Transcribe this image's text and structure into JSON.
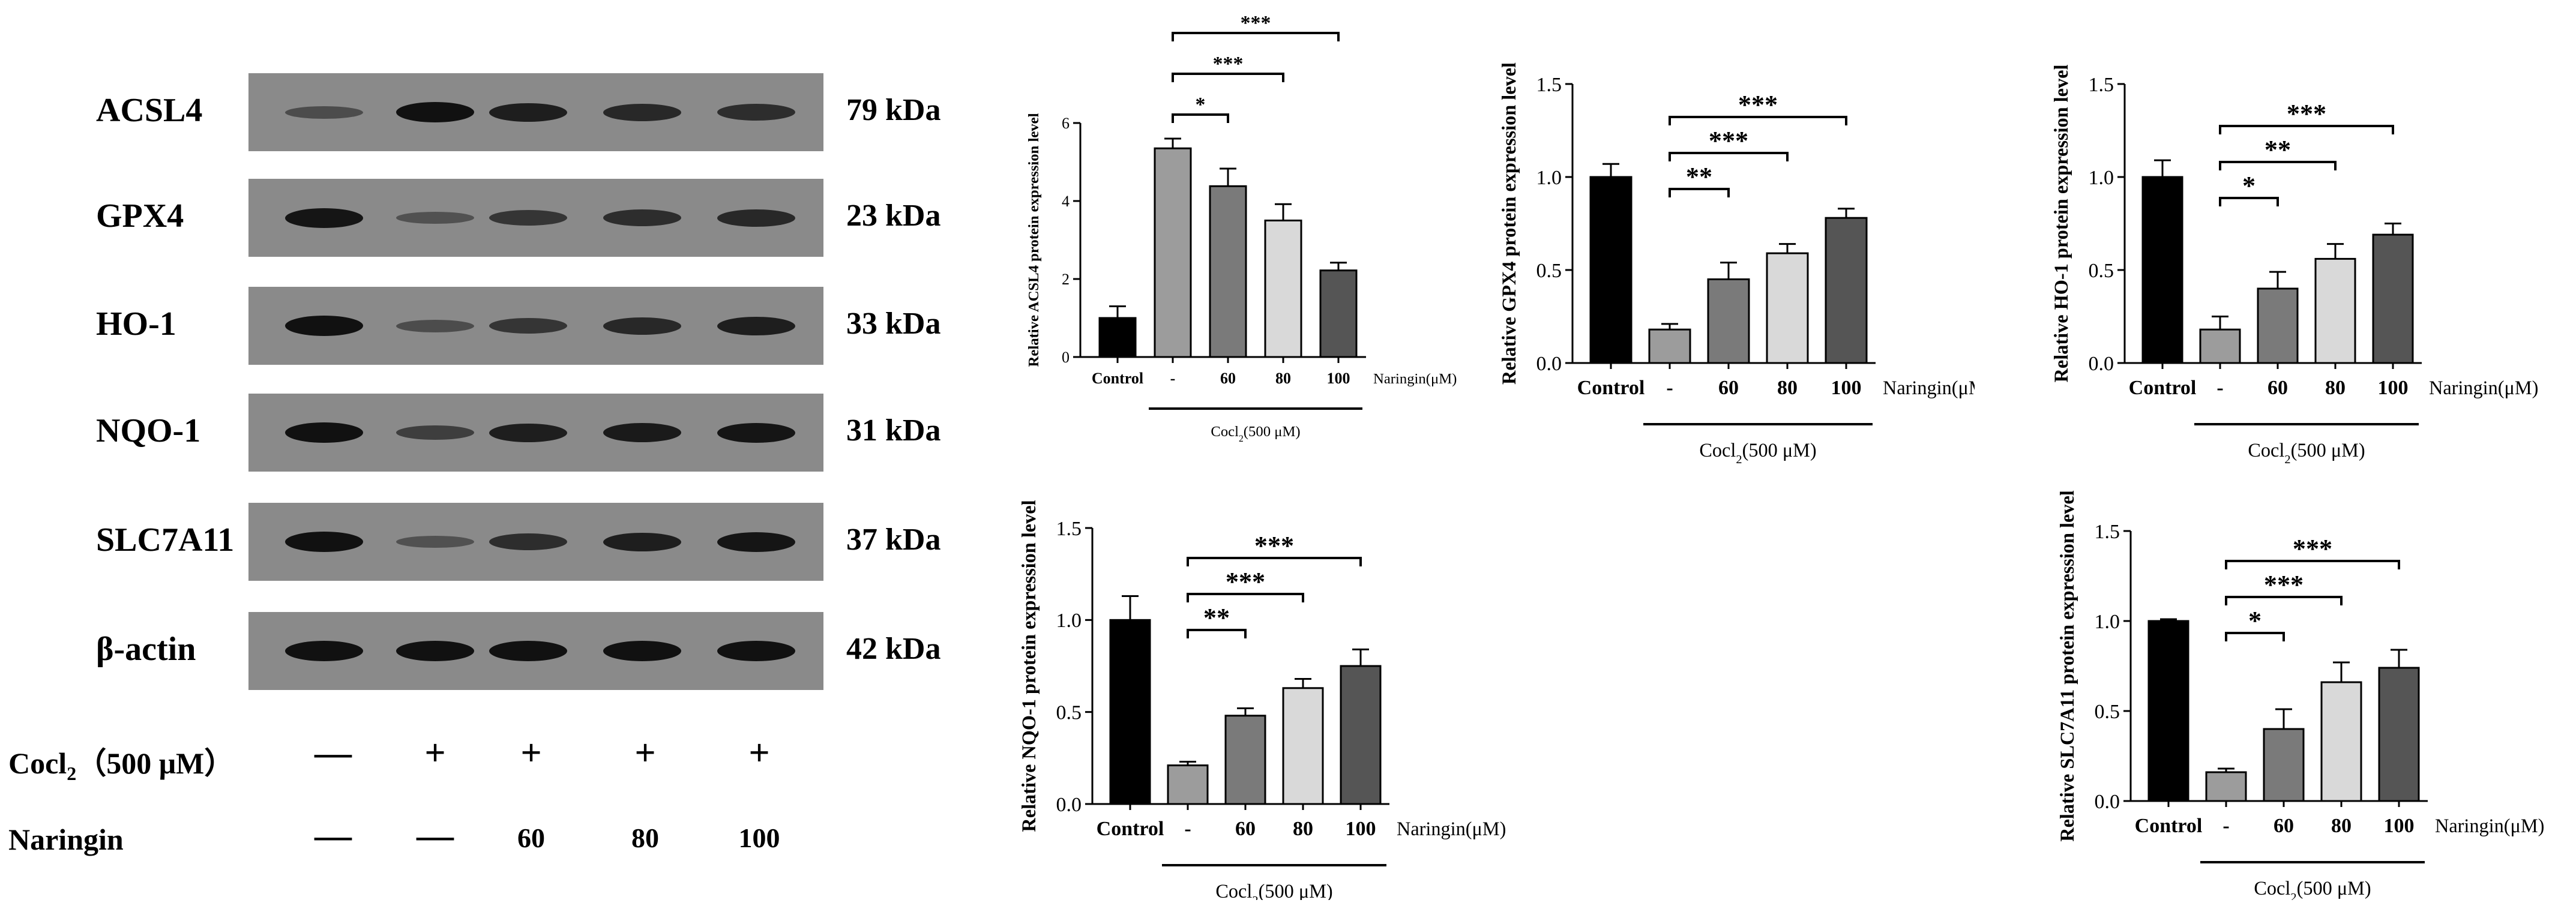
{
  "western_blot": {
    "rows": [
      {
        "label": "ACSL4",
        "kda": "79 kDa",
        "intensity": [
          0.35,
          1.0,
          0.85,
          0.75,
          0.7
        ]
      },
      {
        "label": "GPX4",
        "kda": "23 kDa",
        "intensity": [
          0.95,
          0.3,
          0.6,
          0.7,
          0.75
        ]
      },
      {
        "label": "HO-1",
        "kda": "33 kDa",
        "intensity": [
          1.0,
          0.35,
          0.6,
          0.75,
          0.85
        ]
      },
      {
        "label": "NQO-1",
        "kda": "31 kDa",
        "intensity": [
          1.0,
          0.5,
          0.85,
          0.9,
          0.95
        ]
      },
      {
        "label": "SLC7A11",
        "kda": "37 kDa",
        "intensity": [
          1.0,
          0.3,
          0.7,
          0.85,
          0.95
        ]
      },
      {
        "label": "β-actin",
        "kda": "42 kDa",
        "intensity": [
          1.0,
          1.0,
          1.0,
          1.0,
          1.0
        ]
      }
    ],
    "cocl2_label_prefix": "Cocl",
    "cocl2_label_sub": "2",
    "cocl2_label_suffix": "（500 μM）",
    "cocl2_values": [
      "—",
      "+",
      "+",
      "+",
      "+"
    ],
    "naringin_label": "Naringin",
    "naringin_values": [
      "—",
      "—",
      "60",
      "80",
      "100"
    ]
  },
  "chart_data": [
    {
      "type": "bar",
      "protein": "ACSL4",
      "ylabel": "Relative ACSL4  protein expression level",
      "categories": [
        "Control",
        "-",
        "60",
        "80",
        "100"
      ],
      "values": [
        1.0,
        5.35,
        4.38,
        3.5,
        2.22
      ],
      "errors": [
        0.3,
        0.25,
        0.45,
        0.42,
        0.2
      ],
      "ylim": [
        0,
        6
      ],
      "yticks": [
        "0",
        "2",
        "4",
        "6"
      ],
      "ytick_values": [
        0,
        2,
        4,
        6
      ],
      "bar_colors": [
        "#000000",
        "#9c9c9c",
        "#7a7a7a",
        "#d9d9d9",
        "#555555"
      ],
      "xtitle": "Naringin(μM)",
      "group_label_prefix": "Cocl",
      "group_label_sub": "2",
      "group_label_suffix": "(500 μM)",
      "significance": [
        {
          "from": 1,
          "to": 2,
          "label": "*"
        },
        {
          "from": 1,
          "to": 3,
          "label": "***"
        },
        {
          "from": 1,
          "to": 4,
          "label": "***"
        }
      ]
    },
    {
      "type": "bar",
      "protein": "GPX4",
      "ylabel": "Relative GPX4  protein expression level",
      "categories": [
        "Control",
        "-",
        "60",
        "80",
        "100"
      ],
      "values": [
        1.0,
        0.18,
        0.45,
        0.59,
        0.78
      ],
      "errors": [
        0.07,
        0.03,
        0.09,
        0.05,
        0.05
      ],
      "ylim": [
        0,
        1.5
      ],
      "yticks": [
        "0.0",
        "0.5",
        "1.0",
        "1.5"
      ],
      "ytick_values": [
        0,
        0.5,
        1.0,
        1.5
      ],
      "bar_colors": [
        "#000000",
        "#9c9c9c",
        "#7a7a7a",
        "#d9d9d9",
        "#555555"
      ],
      "xtitle": "Naringin(μM)",
      "group_label_prefix": "Cocl",
      "group_label_sub": "2",
      "group_label_suffix": "(500 μM)",
      "significance": [
        {
          "from": 1,
          "to": 2,
          "label": "**"
        },
        {
          "from": 1,
          "to": 3,
          "label": "***"
        },
        {
          "from": 1,
          "to": 4,
          "label": "***"
        }
      ]
    },
    {
      "type": "bar",
      "protein": "HO-1",
      "ylabel": "Relative HO-1  protein expression level",
      "categories": [
        "Control",
        "-",
        "60",
        "80",
        "100"
      ],
      "values": [
        1.0,
        0.18,
        0.4,
        0.56,
        0.69
      ],
      "errors": [
        0.09,
        0.07,
        0.09,
        0.08,
        0.06
      ],
      "ylim": [
        0,
        1.5
      ],
      "yticks": [
        "0.0",
        "0.5",
        "1.0",
        "1.5"
      ],
      "ytick_values": [
        0,
        0.5,
        1.0,
        1.5
      ],
      "bar_colors": [
        "#000000",
        "#9c9c9c",
        "#7a7a7a",
        "#d9d9d9",
        "#555555"
      ],
      "xtitle": "Naringin(μM)",
      "group_label_prefix": "Cocl",
      "group_label_sub": "2",
      "group_label_suffix": "(500 μM)",
      "significance": [
        {
          "from": 1,
          "to": 2,
          "label": "*"
        },
        {
          "from": 1,
          "to": 3,
          "label": "**"
        },
        {
          "from": 1,
          "to": 4,
          "label": "***"
        }
      ]
    },
    {
      "type": "bar",
      "protein": "NQO-1",
      "ylabel": "Relative NQO-1  protein expression level",
      "categories": [
        "Control",
        "-",
        "60",
        "80",
        "100"
      ],
      "values": [
        1.0,
        0.21,
        0.48,
        0.63,
        0.75
      ],
      "errors": [
        0.13,
        0.02,
        0.04,
        0.05,
        0.09
      ],
      "ylim": [
        0,
        1.5
      ],
      "yticks": [
        "0.0",
        "0.5",
        "1.0",
        "1.5"
      ],
      "ytick_values": [
        0,
        0.5,
        1.0,
        1.5
      ],
      "bar_colors": [
        "#000000",
        "#9c9c9c",
        "#7a7a7a",
        "#d9d9d9",
        "#555555"
      ],
      "xtitle": "Naringin(μM)",
      "group_label_prefix": "Cocl",
      "group_label_sub": "2",
      "group_label_suffix": "(500 μM)",
      "significance": [
        {
          "from": 1,
          "to": 2,
          "label": "**"
        },
        {
          "from": 1,
          "to": 3,
          "label": "***"
        },
        {
          "from": 1,
          "to": 4,
          "label": "***"
        }
      ]
    },
    {
      "type": "bar",
      "protein": "SLC7A11",
      "ylabel": "Relative SLC7A11  protein expression level",
      "categories": [
        "Control",
        "-",
        "60",
        "80",
        "100"
      ],
      "values": [
        1.0,
        0.16,
        0.4,
        0.66,
        0.74
      ],
      "errors": [
        0.01,
        0.02,
        0.11,
        0.11,
        0.1
      ],
      "ylim": [
        0,
        1.5
      ],
      "yticks": [
        "0.0",
        "0.5",
        "1.0",
        "1.5"
      ],
      "ytick_values": [
        0,
        0.5,
        1.0,
        1.5
      ],
      "bar_colors": [
        "#000000",
        "#9c9c9c",
        "#7a7a7a",
        "#d9d9d9",
        "#555555"
      ],
      "xtitle": "Naringin(μM)",
      "group_label_prefix": "Cocl",
      "group_label_sub": "2",
      "group_label_suffix": "(500 μM)",
      "significance": [
        {
          "from": 1,
          "to": 2,
          "label": "*"
        },
        {
          "from": 1,
          "to": 3,
          "label": "***"
        },
        {
          "from": 1,
          "to": 4,
          "label": "***"
        }
      ]
    }
  ]
}
